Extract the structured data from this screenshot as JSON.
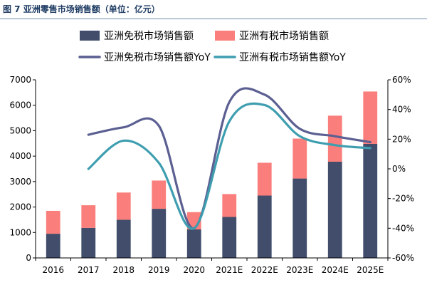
{
  "figure": {
    "title": "图 7  亚洲零售市场销售额（单位：亿元）"
  },
  "chart_data": {
    "type": "bar",
    "stacked": true,
    "categories": [
      "2016",
      "2017",
      "2018",
      "2019",
      "2020",
      "2021E",
      "2022E",
      "2023E",
      "2024E",
      "2025E"
    ],
    "series": [
      {
        "name": "亚洲免税市场销售额",
        "kind": "bar",
        "axis": "left",
        "color": "#414d6b",
        "values": [
          950,
          1180,
          1500,
          1930,
          1120,
          1610,
          2450,
          3120,
          3780,
          4480
        ]
      },
      {
        "name": "亚洲有税市场销售额",
        "kind": "bar",
        "axis": "left",
        "color": "#fa7f7c",
        "values": [
          900,
          890,
          1070,
          1110,
          680,
          900,
          1290,
          1570,
          1810,
          2060
        ]
      },
      {
        "name": "亚洲免税市场销售额YoY",
        "kind": "line",
        "axis": "right",
        "color": "#5b5f91",
        "values": [
          null,
          23,
          28,
          29,
          -40,
          45,
          50,
          27,
          22,
          18
        ]
      },
      {
        "name": "亚洲有税市场销售额YoY",
        "kind": "line",
        "axis": "right",
        "color": "#3e9eb0",
        "values": [
          null,
          0,
          19,
          4,
          -40,
          32,
          43,
          22,
          16,
          14
        ]
      }
    ],
    "y_left": {
      "min": 0,
      "max": 7000,
      "step": 1000,
      "ticks": [
        "0",
        "1000",
        "2000",
        "3000",
        "4000",
        "5000",
        "6000",
        "7000"
      ]
    },
    "y_right": {
      "min": -60,
      "max": 60,
      "step": 20,
      "ticks": [
        "-60%",
        "-40%",
        "-20%",
        "0%",
        "20%",
        "40%",
        "60%"
      ]
    },
    "legend_position": "top",
    "grid": false
  }
}
